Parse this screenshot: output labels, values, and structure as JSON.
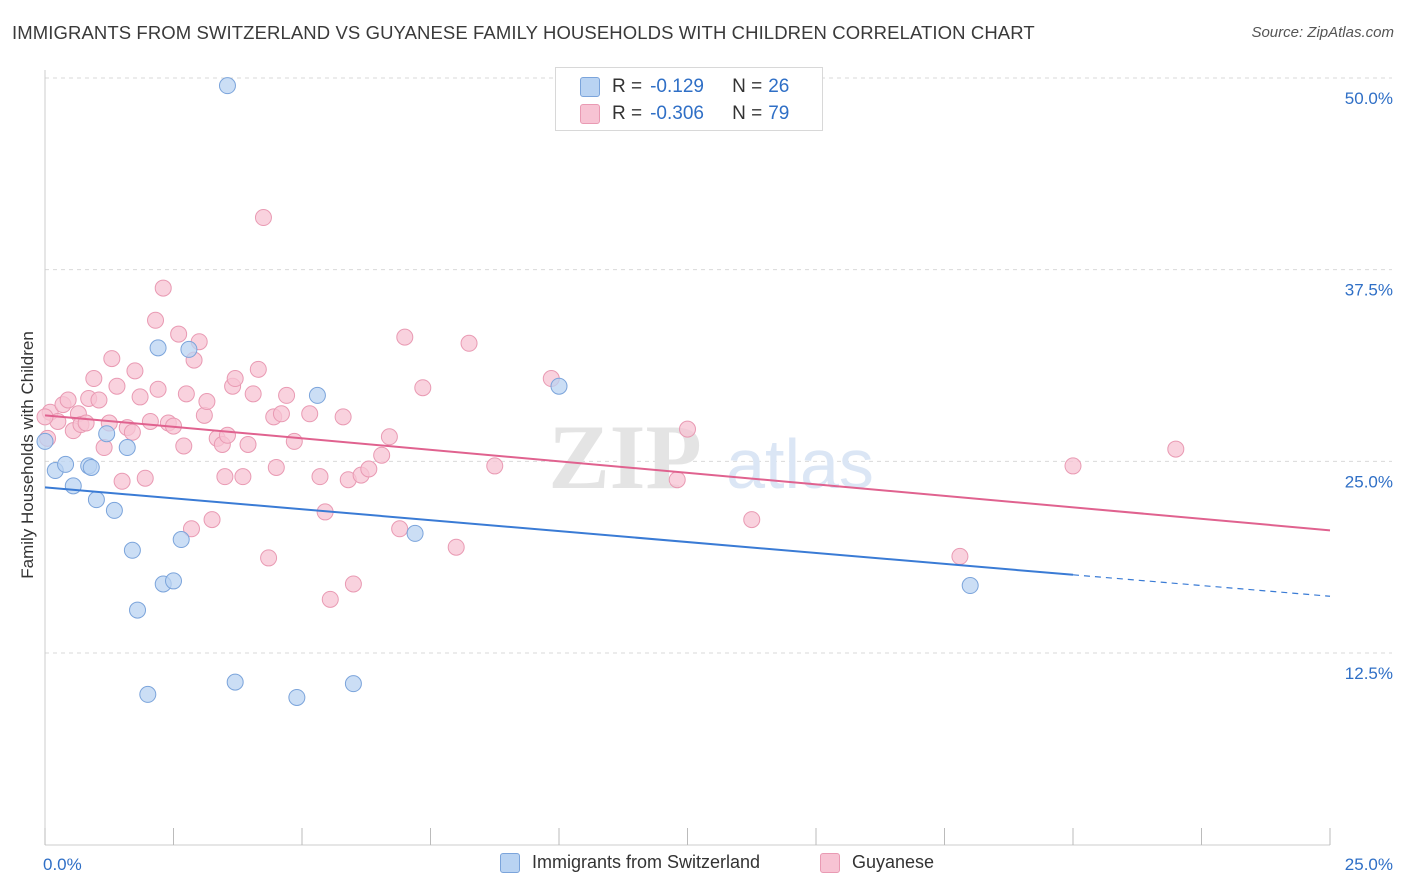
{
  "header": {
    "title": "IMMIGRANTS FROM SWITZERLAND VS GUYANESE FAMILY HOUSEHOLDS WITH CHILDREN CORRELATION CHART",
    "source": "Source: ZipAtlas.com"
  },
  "watermark": {
    "zip": "ZIP",
    "atlas": "atlas"
  },
  "legend_top": {
    "rows": [
      {
        "r_label": "R =",
        "r_value": "-0.129",
        "n_label": "N =",
        "n_value": "26"
      },
      {
        "r_label": "R =",
        "r_value": "-0.306",
        "n_label": "N =",
        "n_value": "79"
      }
    ]
  },
  "colors": {
    "blue_fill": "#b9d3f2",
    "blue_stroke": "#7ba4db",
    "blue_line": "#3a7bd5",
    "pink_fill": "#f7c3d3",
    "pink_stroke": "#e99ab3",
    "pink_line": "#e0628f",
    "tick_text": "#2f6fc6",
    "grid": "#d9d9d9"
  },
  "chart_data": {
    "type": "scatter",
    "title": "IMMIGRANTS FROM SWITZERLAND VS GUYANESE FAMILY HOUSEHOLDS WITH CHILDREN CORRELATION CHART",
    "xlabel": "",
    "ylabel": "Family Households with Children",
    "xlim": [
      0,
      25
    ],
    "ylim": [
      0,
      51
    ],
    "x_tick_labels": [
      "0.0%",
      "25.0%"
    ],
    "y_ticks": [
      {
        "value": 50,
        "label": "50.0%"
      },
      {
        "value": 37.5,
        "label": "37.5%"
      },
      {
        "value": 25,
        "label": "25.0%"
      },
      {
        "value": 12.5,
        "label": "12.5%"
      }
    ],
    "legend_position": "bottom-center",
    "series": [
      {
        "name": "Immigrants from Switzerland",
        "color": "blue",
        "r": -0.129,
        "n": 26,
        "trend": {
          "x0": 0,
          "y0": 23.3,
          "x1": 20.0,
          "y1": 17.6,
          "dash_to_x": 25,
          "dash_to_y": 16.2
        },
        "points": [
          [
            0.0,
            26.3
          ],
          [
            0.2,
            24.4
          ],
          [
            0.4,
            24.8
          ],
          [
            0.55,
            23.4
          ],
          [
            0.85,
            24.7
          ],
          [
            0.9,
            24.6
          ],
          [
            1.0,
            22.5
          ],
          [
            1.2,
            26.8
          ],
          [
            1.35,
            21.8
          ],
          [
            1.6,
            25.9
          ],
          [
            1.7,
            19.2
          ],
          [
            1.8,
            15.3
          ],
          [
            2.0,
            9.8
          ],
          [
            2.2,
            32.4
          ],
          [
            2.3,
            17.0
          ],
          [
            2.5,
            17.2
          ],
          [
            2.65,
            19.9
          ],
          [
            2.8,
            32.3
          ],
          [
            3.55,
            49.5
          ],
          [
            3.7,
            10.6
          ],
          [
            4.9,
            9.6
          ],
          [
            5.3,
            29.3
          ],
          [
            6.0,
            10.5
          ],
          [
            7.2,
            20.3
          ],
          [
            10.0,
            29.9
          ],
          [
            18.0,
            16.9
          ]
        ]
      },
      {
        "name": "Guyanese",
        "color": "pink",
        "r": -0.306,
        "n": 79,
        "trend": {
          "x0": 0,
          "y0": 28.0,
          "x1": 25,
          "y1": 20.5
        },
        "points": [
          [
            0.05,
            26.5
          ],
          [
            0.1,
            28.2
          ],
          [
            0.25,
            27.6
          ],
          [
            0.35,
            28.7
          ],
          [
            0.45,
            29.0
          ],
          [
            0.55,
            27.0
          ],
          [
            0.65,
            28.1
          ],
          [
            0.7,
            27.4
          ],
          [
            0.8,
            27.5
          ],
          [
            0.85,
            29.1
          ],
          [
            0.95,
            30.4
          ],
          [
            1.05,
            29.0
          ],
          [
            1.15,
            25.9
          ],
          [
            1.25,
            27.5
          ],
          [
            1.3,
            31.7
          ],
          [
            1.4,
            29.9
          ],
          [
            1.5,
            23.7
          ],
          [
            1.6,
            27.2
          ],
          [
            1.7,
            26.9
          ],
          [
            1.75,
            30.9
          ],
          [
            1.85,
            29.2
          ],
          [
            1.95,
            23.9
          ],
          [
            2.05,
            27.6
          ],
          [
            2.15,
            34.2
          ],
          [
            2.2,
            29.7
          ],
          [
            2.3,
            36.3
          ],
          [
            2.4,
            27.5
          ],
          [
            2.5,
            27.3
          ],
          [
            2.6,
            33.3
          ],
          [
            2.7,
            26.0
          ],
          [
            2.75,
            29.4
          ],
          [
            2.85,
            20.6
          ],
          [
            2.9,
            31.6
          ],
          [
            3.0,
            32.8
          ],
          [
            3.1,
            28.0
          ],
          [
            3.15,
            28.9
          ],
          [
            3.25,
            21.2
          ],
          [
            3.35,
            26.5
          ],
          [
            3.45,
            26.1
          ],
          [
            3.5,
            24.0
          ],
          [
            3.55,
            26.7
          ],
          [
            3.65,
            29.9
          ],
          [
            3.7,
            30.4
          ],
          [
            3.85,
            24.0
          ],
          [
            3.95,
            26.1
          ],
          [
            4.05,
            29.4
          ],
          [
            4.15,
            31.0
          ],
          [
            4.25,
            40.9
          ],
          [
            4.35,
            18.7
          ],
          [
            4.45,
            27.9
          ],
          [
            4.5,
            24.6
          ],
          [
            4.6,
            28.1
          ],
          [
            4.7,
            29.3
          ],
          [
            4.85,
            26.3
          ],
          [
            5.15,
            28.1
          ],
          [
            5.35,
            24.0
          ],
          [
            5.45,
            21.7
          ],
          [
            5.55,
            16.0
          ],
          [
            5.8,
            27.9
          ],
          [
            5.9,
            23.8
          ],
          [
            6.0,
            17.0
          ],
          [
            6.15,
            24.1
          ],
          [
            6.3,
            24.5
          ],
          [
            6.55,
            25.4
          ],
          [
            6.7,
            26.6
          ],
          [
            6.9,
            20.6
          ],
          [
            7.0,
            33.1
          ],
          [
            7.35,
            29.8
          ],
          [
            8.0,
            19.4
          ],
          [
            8.25,
            32.7
          ],
          [
            8.75,
            24.7
          ],
          [
            9.85,
            30.4
          ],
          [
            12.3,
            23.8
          ],
          [
            12.5,
            27.1
          ],
          [
            13.75,
            21.2
          ],
          [
            17.8,
            18.8
          ],
          [
            20.0,
            24.7
          ],
          [
            22.0,
            25.8
          ],
          [
            0.0,
            27.9
          ]
        ]
      }
    ]
  }
}
